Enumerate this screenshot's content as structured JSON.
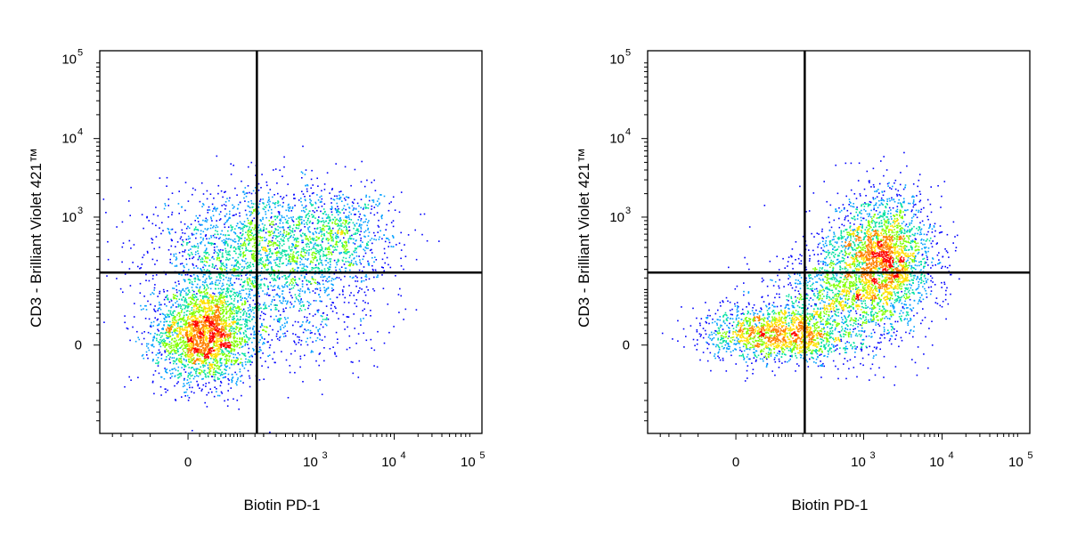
{
  "chart_data": [
    {
      "type": "scatter",
      "subtype": "flow-cytometry density dot plot",
      "xlabel": "Biotin PD-1",
      "ylabel": "CD3 - Brilliant Violet 421™",
      "x_scale": "biexponential",
      "y_scale": "biexponential",
      "x_ticks": [
        {
          "label": "0",
          "exp": ""
        },
        {
          "label": "10",
          "exp": "3"
        },
        {
          "label": "10",
          "exp": "4"
        },
        {
          "label": "10",
          "exp": "5"
        }
      ],
      "y_ticks": [
        {
          "label": "0",
          "exp": ""
        },
        {
          "label": "10",
          "exp": "3"
        },
        {
          "label": "10",
          "exp": "4"
        },
        {
          "label": "10",
          "exp": "5"
        }
      ],
      "gate": {
        "x": 160,
        "y": 180
      },
      "density_colors": [
        "#0000ff",
        "#00a0ff",
        "#00e0a0",
        "#80ff00",
        "#ffe000",
        "#ff8000",
        "#ff0000"
      ],
      "populations": [
        {
          "x": 15,
          "y": 10,
          "count": 2600,
          "spread_x": 0.35,
          "spread_y": 0.35
        },
        {
          "x": 200,
          "y": 350,
          "count": 2300,
          "spread_x": 0.75,
          "spread_y": 0.45
        },
        {
          "x": 600,
          "y": 30,
          "count": 300,
          "spread_x": 0.6,
          "spread_y": 0.45
        },
        {
          "x": 2000,
          "y": 700,
          "count": 500,
          "spread_x": 0.4,
          "spread_y": 0.3
        }
      ]
    },
    {
      "type": "scatter",
      "subtype": "flow-cytometry density dot plot",
      "xlabel": "Biotin PD-1",
      "ylabel": "CD3 - Brilliant Violet 421™",
      "x_scale": "biexponential",
      "y_scale": "biexponential",
      "x_ticks": [
        {
          "label": "0",
          "exp": ""
        },
        {
          "label": "10",
          "exp": "3"
        },
        {
          "label": "10",
          "exp": "4"
        },
        {
          "label": "10",
          "exp": "5"
        }
      ],
      "y_ticks": [
        {
          "label": "0",
          "exp": ""
        },
        {
          "label": "10",
          "exp": "3"
        },
        {
          "label": "10",
          "exp": "4"
        },
        {
          "label": "10",
          "exp": "5"
        }
      ],
      "gate": {
        "x": 160,
        "y": 180
      },
      "density_colors": [
        "#0000ff",
        "#00a0ff",
        "#00e0a0",
        "#80ff00",
        "#ffe000",
        "#ff8000",
        "#ff0000"
      ],
      "populations": [
        {
          "x": 60,
          "y": 10,
          "count": 1600,
          "spread_x": 0.5,
          "spread_y": 0.2
        },
        {
          "x": 500,
          "y": 80,
          "count": 1100,
          "spread_x": 0.5,
          "spread_y": 0.4
        },
        {
          "x": 1800,
          "y": 300,
          "count": 2400,
          "spread_x": 0.35,
          "spread_y": 0.45
        }
      ]
    }
  ]
}
